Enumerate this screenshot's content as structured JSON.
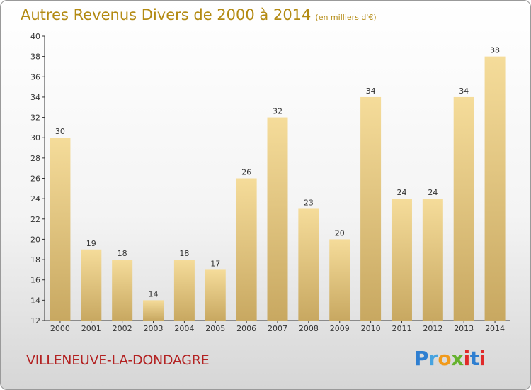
{
  "title": {
    "main": "Autres Revenus Divers de 2000 à 2014",
    "unit": "(en milliers d'€)"
  },
  "commune": "VILLENEUVE-LA-DONDAGRE",
  "logo": {
    "text": "Proxiti"
  },
  "colors": {
    "title": "#b38a12",
    "commune": "#b32222",
    "bar_light": "#f5dc9a",
    "bar_dark": "#c8a861"
  },
  "chart_data": {
    "type": "bar",
    "title": "Autres Revenus Divers de 2000 à 2014",
    "categories": [
      "2000",
      "2001",
      "2002",
      "2003",
      "2004",
      "2005",
      "2006",
      "2007",
      "2008",
      "2009",
      "2010",
      "2011",
      "2012",
      "2013",
      "2014"
    ],
    "values": [
      30,
      19,
      18,
      14,
      18,
      17,
      26,
      32,
      23,
      20,
      34,
      24,
      24,
      34,
      38
    ],
    "ylim": [
      12,
      40
    ],
    "yticks": [
      12,
      14,
      16,
      18,
      20,
      22,
      24,
      26,
      28,
      30,
      32,
      34,
      36,
      38,
      40
    ],
    "grid": false,
    "xlabel": "",
    "ylabel": ""
  }
}
